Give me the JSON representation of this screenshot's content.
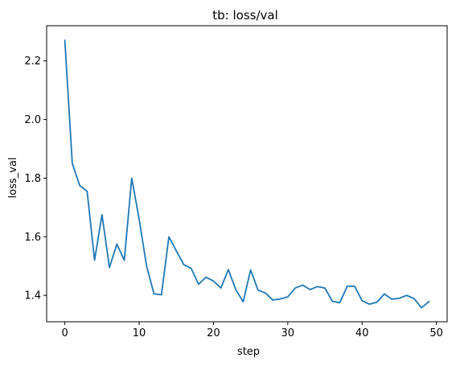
{
  "chart_data": {
    "type": "line",
    "title": "tb: loss/val",
    "xlabel": "step",
    "ylabel": "loss_val",
    "xlim": [
      -2.45,
      51.45
    ],
    "ylim": [
      1.31,
      2.32
    ],
    "xticks": [
      0,
      10,
      20,
      30,
      40,
      50
    ],
    "yticks": [
      1.4,
      1.6,
      1.8,
      2.0,
      2.2
    ],
    "xtick_labels": [
      "0",
      "10",
      "20",
      "30",
      "40",
      "50"
    ],
    "ytick_labels": [
      "1.4",
      "1.6",
      "1.8",
      "2.0",
      "2.2"
    ],
    "grid": false,
    "series": [
      {
        "color": "#1f77b4",
        "x": [
          0,
          1,
          2,
          3,
          4,
          5,
          6,
          7,
          8,
          9,
          10,
          11,
          12,
          13,
          14,
          15,
          16,
          17,
          18,
          19,
          20,
          21,
          22,
          23,
          24,
          25,
          26,
          27,
          28,
          29,
          30,
          31,
          32,
          33,
          34,
          35,
          36,
          37,
          38,
          39,
          40,
          41,
          42,
          43,
          44,
          45,
          46,
          47,
          48,
          49
        ],
        "y": [
          2.27,
          1.85,
          1.775,
          1.755,
          1.52,
          1.675,
          1.495,
          1.575,
          1.52,
          1.8,
          1.66,
          1.5,
          1.405,
          1.402,
          1.6,
          1.552,
          1.505,
          1.492,
          1.438,
          1.462,
          1.449,
          1.425,
          1.488,
          1.42,
          1.378,
          1.487,
          1.418,
          1.408,
          1.384,
          1.388,
          1.395,
          1.425,
          1.435,
          1.42,
          1.43,
          1.425,
          1.38,
          1.375,
          1.431,
          1.431,
          1.382,
          1.37,
          1.377,
          1.405,
          1.387,
          1.39,
          1.4,
          1.389,
          1.358,
          1.379
        ]
      }
    ]
  }
}
